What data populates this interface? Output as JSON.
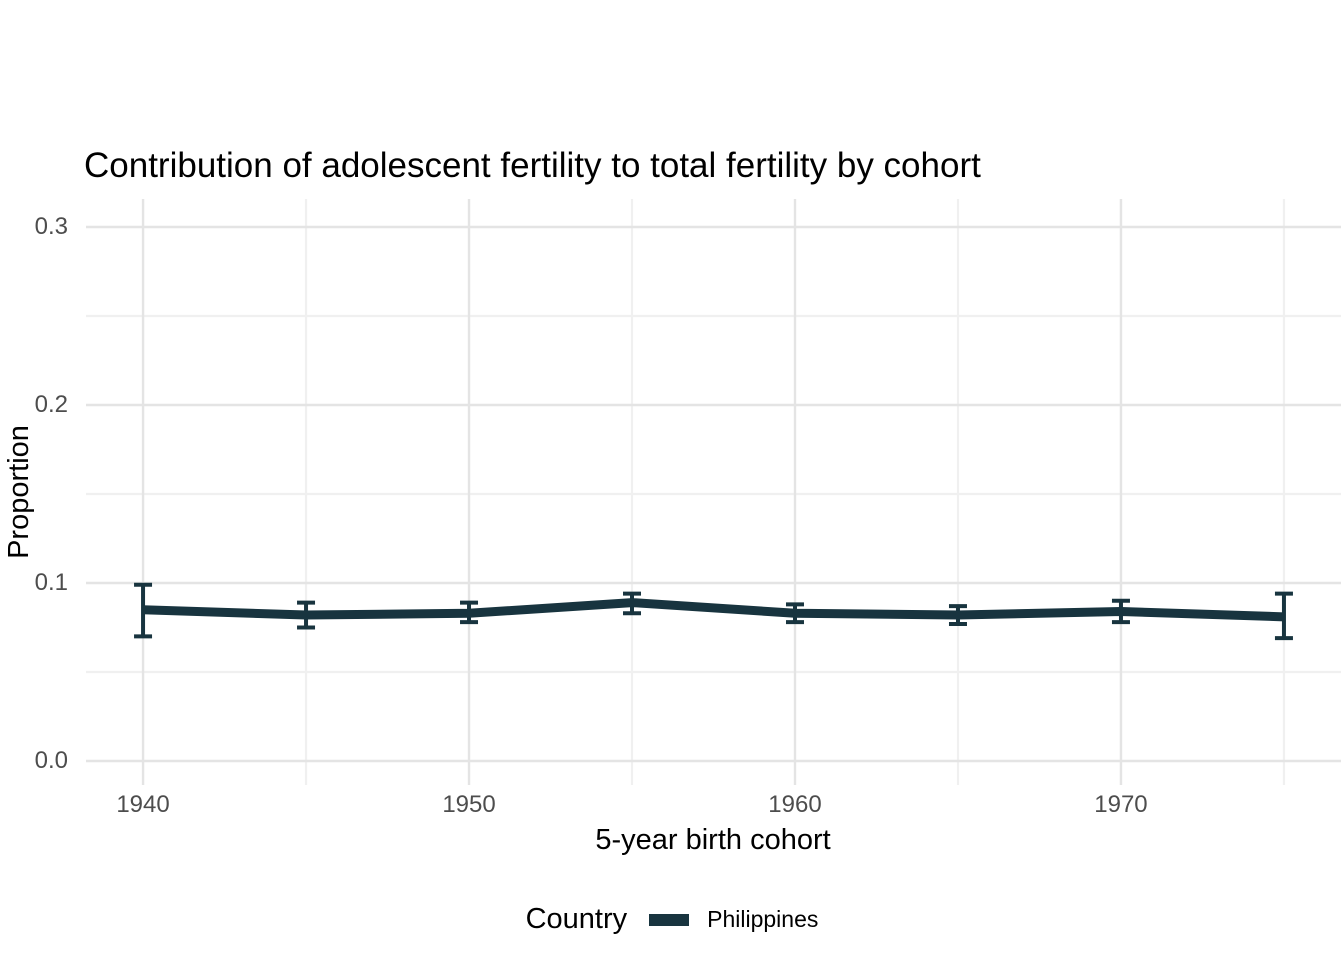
{
  "chart_data": {
    "type": "line",
    "title": "Contribution of adolescent fertility to total fertility by cohort",
    "xlabel": "5-year birth cohort",
    "ylabel": "Proportion",
    "x": [
      1940,
      1945,
      1950,
      1955,
      1960,
      1965,
      1970,
      1975
    ],
    "series": [
      {
        "name": "Philippines",
        "values": [
          0.085,
          0.082,
          0.083,
          0.089,
          0.083,
          0.082,
          0.084,
          0.081
        ],
        "ci_lower": [
          0.07,
          0.075,
          0.078,
          0.083,
          0.078,
          0.077,
          0.078,
          0.069
        ],
        "ci_upper": [
          0.099,
          0.089,
          0.089,
          0.094,
          0.088,
          0.087,
          0.09,
          0.094
        ],
        "color": "#18343F"
      }
    ],
    "x_tick_values": [
      1940,
      1950,
      1960,
      1970
    ],
    "x_tick_labels": [
      "1940",
      "1950",
      "1960",
      "1970"
    ],
    "x_minor_values": [
      1945,
      1955,
      1965,
      1975
    ],
    "y_tick_values": [
      0.0,
      0.1,
      0.2,
      0.3
    ],
    "y_tick_labels": [
      "0.0",
      "0.1",
      "0.2",
      "0.3"
    ],
    "y_minor_values": [
      0.05,
      0.15,
      0.25
    ],
    "xlim": [
      1938.25,
      1976.75
    ],
    "ylim": [
      0,
      0.3
    ],
    "grid": "on",
    "legend_position": "bottom",
    "error_bars": true
  },
  "legend": {
    "title": "Country",
    "items": [
      {
        "label": "Philippines",
        "color": "#18343F"
      }
    ]
  },
  "colors": {
    "grid_major": "#e4e4e4",
    "grid_minor": "#f0f0f0",
    "tick_label": "#4d4d4d",
    "title_text": "#000000",
    "line": "#18343F"
  }
}
